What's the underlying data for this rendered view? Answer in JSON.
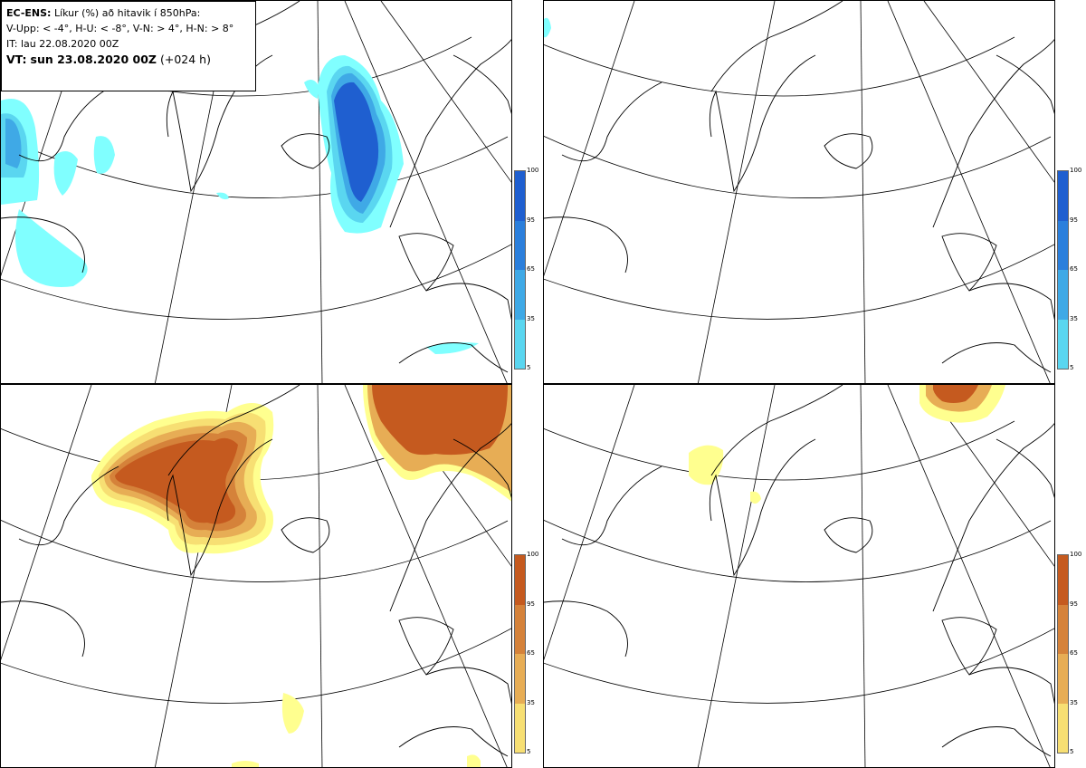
{
  "info": {
    "model": "EC-ENS:",
    "title": "Líkur (%) að hitavik í 850hPa:",
    "thresholds": "V-Upp: < -4°, H-U: < -8°, V-N: > 4°, H-N: > 8°",
    "it": "IT: lau 22.08.2020 00Z",
    "vt_label": "VT:",
    "vt_value": "sun 23.08.2020 00Z",
    "lead": "(+024 h)"
  },
  "legend_ticks": [
    "100",
    "95",
    "65",
    "35",
    "5"
  ],
  "colors": {
    "blue": [
      "#80ffff",
      "#5ad6f0",
      "#3fa9e6",
      "#2b7fdc",
      "#1f5fd0"
    ],
    "orange": [
      "#ffff8f",
      "#f7df73",
      "#e7ad55",
      "#d5823a",
      "#c55a1f"
    ],
    "coast": "#000000",
    "grid": "#000000"
  },
  "panels": [
    {
      "name": "cold-4",
      "scale": "blue"
    },
    {
      "name": "cold-8",
      "scale": "blue"
    },
    {
      "name": "warm-4",
      "scale": "orange"
    },
    {
      "name": "warm-8",
      "scale": "orange"
    }
  ]
}
